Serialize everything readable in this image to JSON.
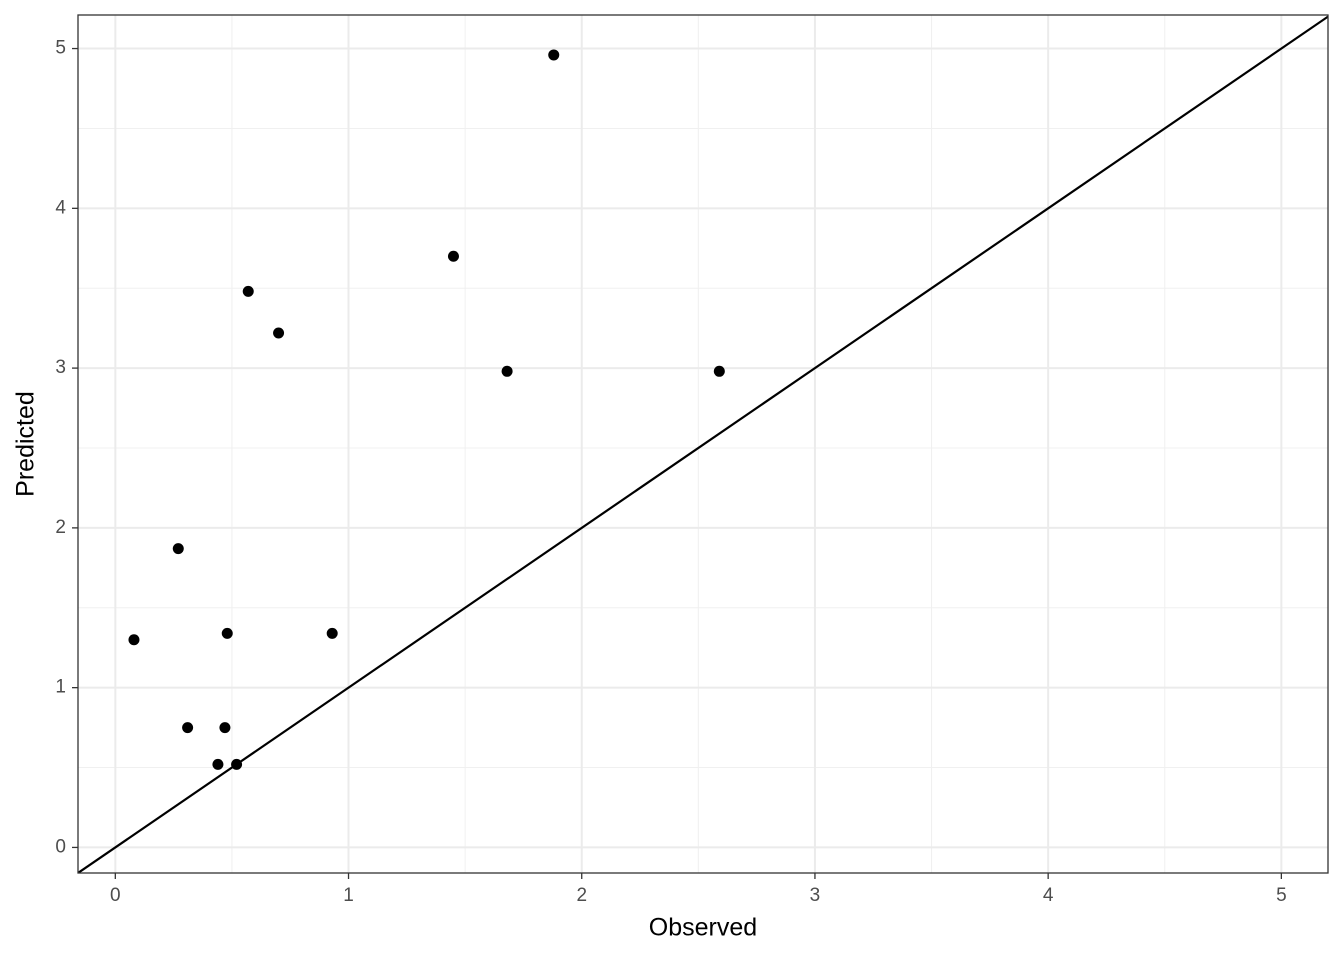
{
  "chart_data": {
    "type": "scatter",
    "x_label": "Observed",
    "y_label": "Predicted",
    "x": [
      0.08,
      0.27,
      0.31,
      0.44,
      0.47,
      0.48,
      0.52,
      0.57,
      0.7,
      0.93,
      1.45,
      1.68,
      1.88,
      2.59
    ],
    "series": [
      {
        "color": "#000000",
        "values": [
          1.3,
          1.87,
          0.75,
          0.52,
          0.75,
          1.34,
          0.52,
          3.48,
          3.22,
          1.34,
          3.7,
          2.98,
          4.96,
          2.98
        ]
      }
    ],
    "xlim": [
      -0.16,
      5.2
    ],
    "ylim": [
      -0.16,
      5.21
    ],
    "xticks": [
      0,
      1,
      2,
      3,
      4,
      5
    ],
    "yticks": [
      0,
      1,
      2,
      3,
      4,
      5
    ],
    "grid": true,
    "minor_grid": true,
    "identity_line": true
  }
}
